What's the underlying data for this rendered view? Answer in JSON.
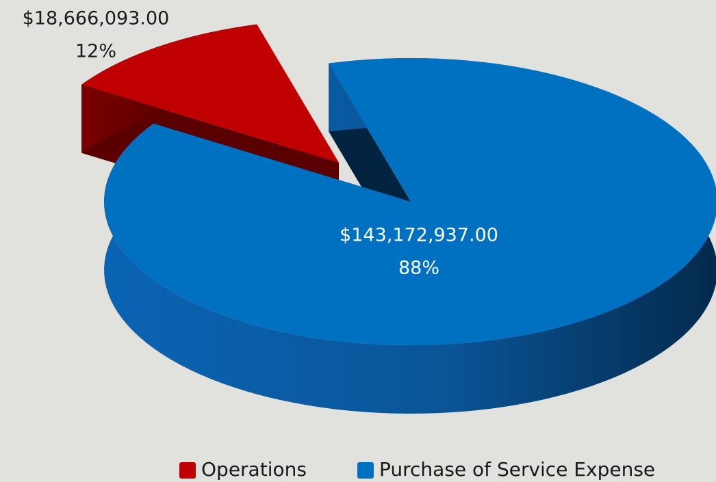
{
  "chart_data": {
    "type": "pie",
    "categories": [
      "Operations",
      "Purchase of Service Expense"
    ],
    "values": [
      18666093,
      143172937
    ],
    "value_labels": [
      "$18,666,093.00",
      "$143,172,937.00"
    ],
    "percent_labels": [
      "12%",
      "88%"
    ],
    "colors": [
      "#c00000",
      "#0070c0"
    ],
    "legend": "bottom"
  }
}
